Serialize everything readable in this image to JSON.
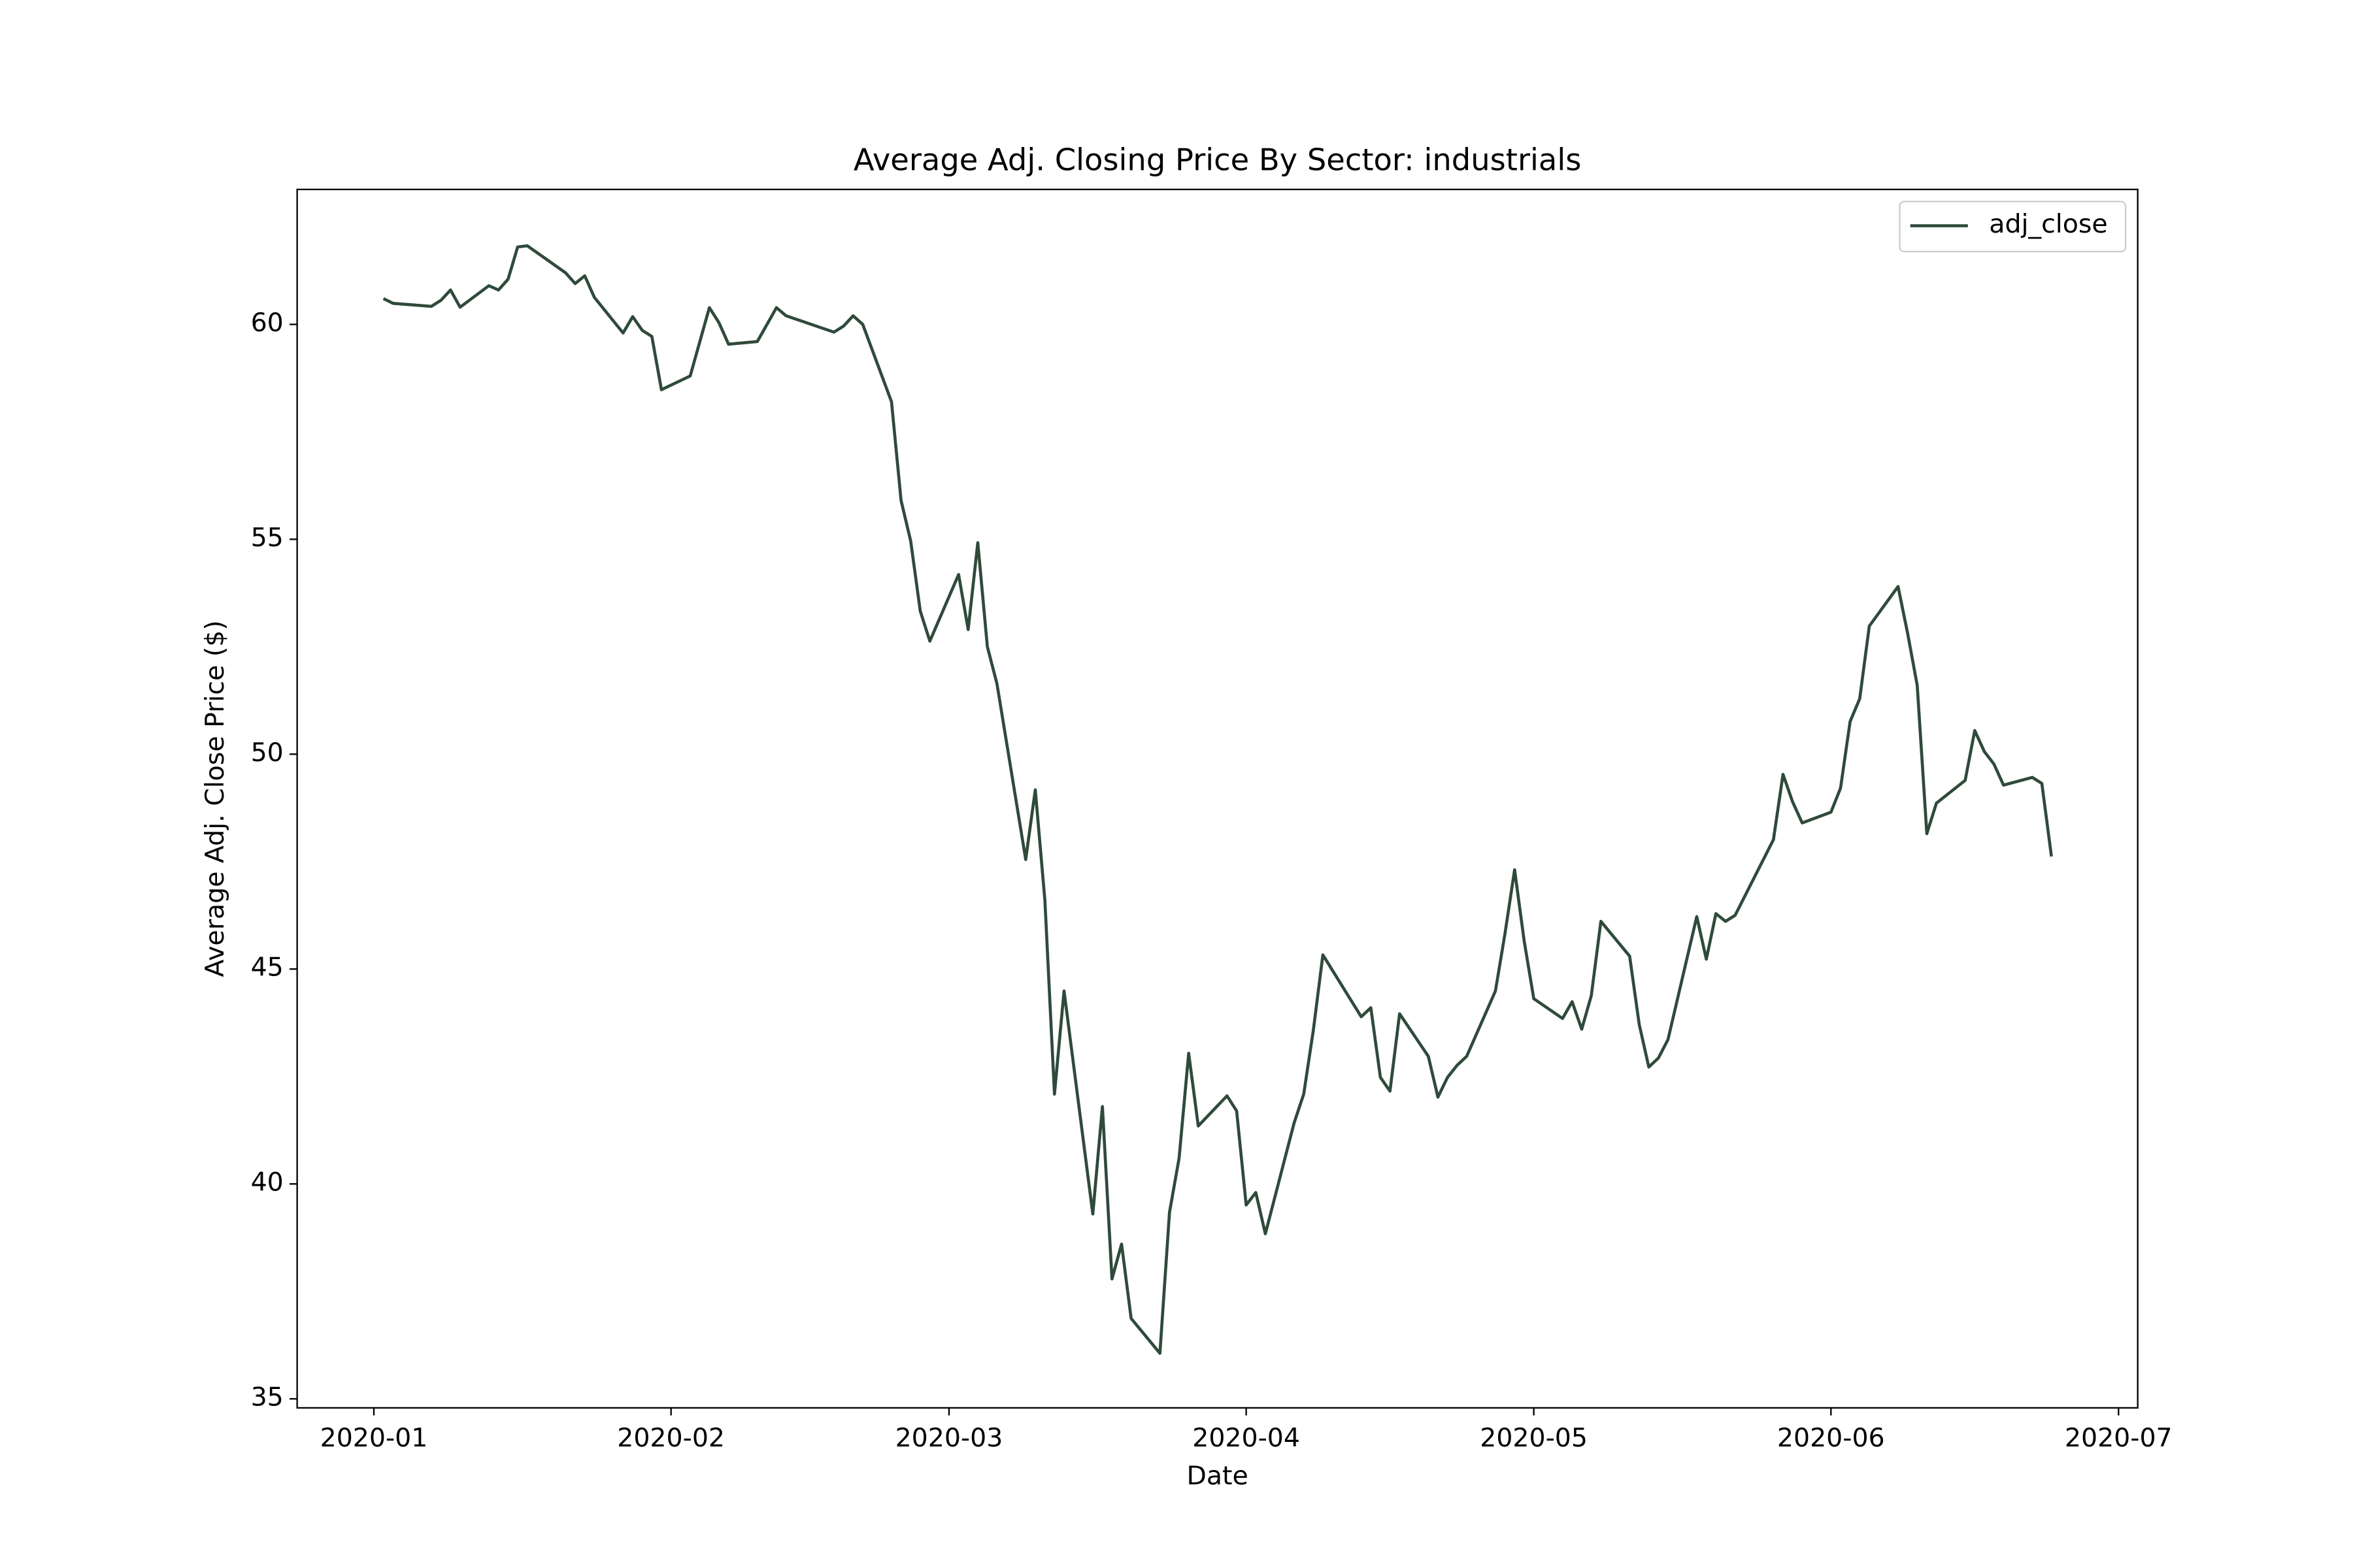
{
  "chart_data": {
    "type": "line",
    "title": "Average Adj. Closing Price By Sector: industrials",
    "x_label": "Date",
    "y_label": "Average Adj. Close Price ($)",
    "x": [
      "2020-01-02",
      "2020-01-03",
      "2020-01-07",
      "2020-01-08",
      "2020-01-09",
      "2020-01-10",
      "2020-01-13",
      "2020-01-14",
      "2020-01-15",
      "2020-01-16",
      "2020-01-17",
      "2020-01-21",
      "2020-01-22",
      "2020-01-23",
      "2020-01-24",
      "2020-01-27",
      "2020-01-28",
      "2020-01-29",
      "2020-01-30",
      "2020-01-31",
      "2020-02-03",
      "2020-02-05",
      "2020-02-06",
      "2020-02-07",
      "2020-02-10",
      "2020-02-12",
      "2020-02-13",
      "2020-02-18",
      "2020-02-19",
      "2020-02-20",
      "2020-02-21",
      "2020-02-24",
      "2020-02-25",
      "2020-02-26",
      "2020-02-27",
      "2020-02-28",
      "2020-03-02",
      "2020-03-03",
      "2020-03-04",
      "2020-03-05",
      "2020-03-06",
      "2020-03-09",
      "2020-03-10",
      "2020-03-11",
      "2020-03-12",
      "2020-03-13",
      "2020-03-16",
      "2020-03-17",
      "2020-03-18",
      "2020-03-19",
      "2020-03-20",
      "2020-03-23",
      "2020-03-24",
      "2020-03-25",
      "2020-03-26",
      "2020-03-27",
      "2020-03-30",
      "2020-03-31",
      "2020-04-01",
      "2020-04-02",
      "2020-04-03",
      "2020-04-06",
      "2020-04-07",
      "2020-04-08",
      "2020-04-09",
      "2020-04-13",
      "2020-04-14",
      "2020-04-15",
      "2020-04-16",
      "2020-04-17",
      "2020-04-20",
      "2020-04-21",
      "2020-04-22",
      "2020-04-23",
      "2020-04-24",
      "2020-04-27",
      "2020-04-28",
      "2020-04-29",
      "2020-04-30",
      "2020-05-01",
      "2020-05-04",
      "2020-05-05",
      "2020-05-06",
      "2020-05-07",
      "2020-05-08",
      "2020-05-11",
      "2020-05-12",
      "2020-05-13",
      "2020-05-14",
      "2020-05-15",
      "2020-05-18",
      "2020-05-19",
      "2020-05-20",
      "2020-05-21",
      "2020-05-22",
      "2020-05-26",
      "2020-05-27",
      "2020-05-28",
      "2020-05-29",
      "2020-06-01",
      "2020-06-02",
      "2020-06-03",
      "2020-06-04",
      "2020-06-05",
      "2020-06-08",
      "2020-06-09",
      "2020-06-10",
      "2020-06-11",
      "2020-06-12",
      "2020-06-15",
      "2020-06-16",
      "2020-06-17",
      "2020-06-18",
      "2020-06-19",
      "2020-06-22",
      "2020-06-23",
      "2020-06-24"
    ],
    "series": [
      {
        "name": "adj_close",
        "color": "#2f4a3a",
        "values": [
          60.6,
          60.49,
          60.42,
          60.56,
          60.8,
          60.4,
          60.9,
          60.8,
          61.05,
          61.8,
          61.83,
          61.2,
          60.95,
          61.13,
          60.63,
          59.8,
          60.18,
          59.86,
          59.72,
          58.48,
          58.8,
          60.39,
          60.04,
          59.54,
          59.6,
          60.39,
          60.2,
          59.82,
          59.96,
          60.2,
          60.0,
          58.2,
          55.9,
          54.96,
          53.33,
          52.63,
          54.18,
          52.9,
          54.92,
          52.5,
          51.64,
          47.55,
          49.17,
          46.6,
          42.09,
          44.49,
          39.3,
          41.8,
          37.79,
          38.6,
          36.87,
          36.06,
          39.34,
          40.6,
          43.04,
          41.35,
          42.05,
          41.7,
          39.51,
          39.8,
          38.84,
          41.42,
          42.09,
          43.57,
          45.33,
          43.89,
          44.1,
          42.48,
          42.16,
          43.96,
          42.97,
          42.02,
          42.48,
          42.76,
          42.97,
          44.49,
          45.83,
          47.31,
          45.65,
          44.31,
          43.85,
          44.24,
          43.6,
          44.38,
          46.11,
          45.3,
          43.71,
          42.72,
          42.93,
          43.36,
          46.22,
          45.23,
          46.29,
          46.11,
          46.25,
          48.01,
          49.53,
          48.89,
          48.4,
          48.65,
          49.21,
          50.76,
          51.29,
          52.98,
          53.9,
          52.81,
          51.6,
          48.15,
          48.86,
          49.39,
          50.55,
          50.06,
          49.77,
          49.28,
          49.46,
          49.32,
          47.62
        ]
      }
    ],
    "xlim": [
      "2019-12-24",
      "2020-07-03"
    ],
    "xticks": [
      {
        "value": "2020-01-01",
        "label": "2020-01"
      },
      {
        "value": "2020-02-01",
        "label": "2020-02"
      },
      {
        "value": "2020-03-01",
        "label": "2020-03"
      },
      {
        "value": "2020-04-01",
        "label": "2020-04"
      },
      {
        "value": "2020-05-01",
        "label": "2020-05"
      },
      {
        "value": "2020-06-01",
        "label": "2020-06"
      },
      {
        "value": "2020-07-01",
        "label": "2020-07"
      }
    ],
    "ylim": [
      34.79,
      63.14
    ],
    "yticks": [
      35,
      40,
      45,
      50,
      55,
      60
    ],
    "grid": false,
    "legend_position": "upper-right"
  }
}
